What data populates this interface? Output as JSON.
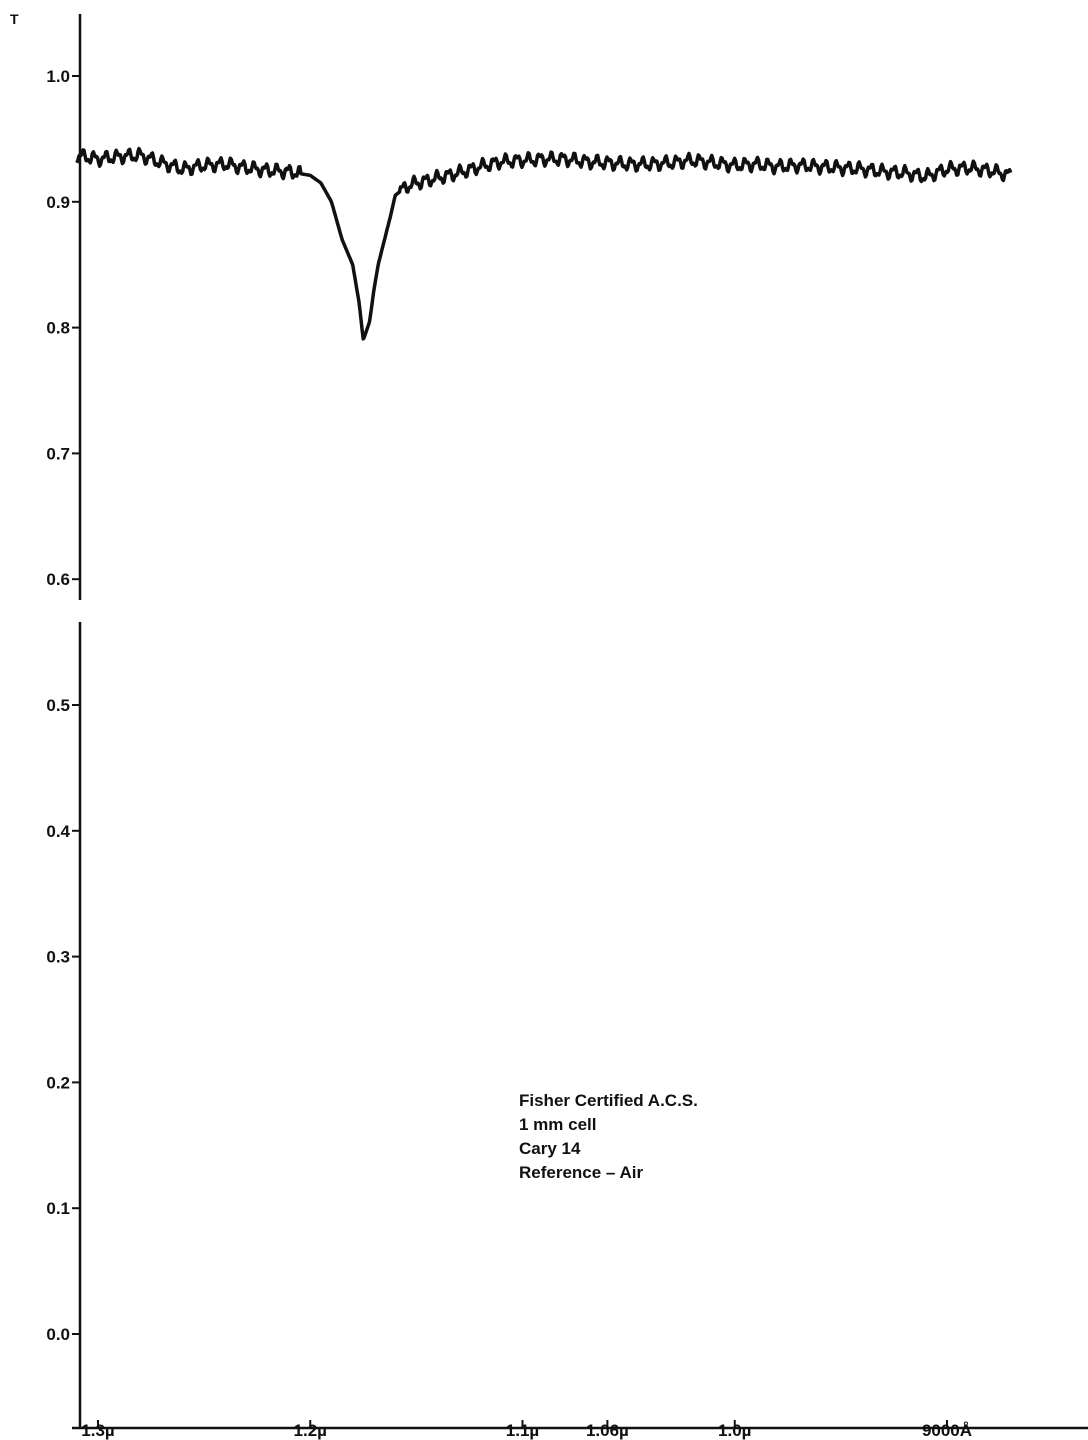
{
  "chart_data": {
    "type": "line",
    "ylabel": "T",
    "xlabel": "",
    "title": "",
    "ylim": [
      -0.05,
      1.05
    ],
    "y_ticks": [
      {
        "value": 1.0,
        "label": "1.0"
      },
      {
        "value": 0.9,
        "label": "0.9"
      },
      {
        "value": 0.8,
        "label": "0.8"
      },
      {
        "value": 0.7,
        "label": "0.7"
      },
      {
        "value": 0.6,
        "label": "0.6"
      },
      {
        "value": 0.5,
        "label": "0.5"
      },
      {
        "value": 0.4,
        "label": "0.4"
      },
      {
        "value": 0.3,
        "label": "0.3"
      },
      {
        "value": 0.2,
        "label": "0.2"
      },
      {
        "value": 0.1,
        "label": "0.1"
      },
      {
        "value": 0.0,
        "label": "0.0"
      }
    ],
    "x_unit": "µ",
    "x_direction": "decreasing wavelength, left to right",
    "xlim": [
      1.31,
      0.87
    ],
    "x_ticks": [
      {
        "value": 1.3,
        "label": "1.3µ"
      },
      {
        "value": 1.2,
        "label": "1.2µ"
      },
      {
        "value": 1.1,
        "label": "1.1µ"
      },
      {
        "value": 1.06,
        "label": "1.06µ"
      },
      {
        "value": 1.0,
        "label": "1.0µ"
      },
      {
        "value": 0.9,
        "label": "9000Å"
      }
    ],
    "grid": false,
    "annotations": [
      "Fisher Certified A.C.S.",
      "1 mm cell",
      "Cary 14",
      "Reference – Air"
    ],
    "series": [
      {
        "x": [
          1.31,
          1.3,
          1.29,
          1.28,
          1.27,
          1.26,
          1.25,
          1.24,
          1.23,
          1.22,
          1.21,
          1.2,
          1.195,
          1.19,
          1.185,
          1.18,
          1.177,
          1.175,
          1.172,
          1.17,
          1.168,
          1.165,
          1.162,
          1.16,
          1.155,
          1.15,
          1.14,
          1.13,
          1.12,
          1.11,
          1.1,
          1.09,
          1.08,
          1.07,
          1.06,
          1.05,
          1.04,
          1.03,
          1.02,
          1.01,
          1.0,
          0.99,
          0.98,
          0.97,
          0.96,
          0.95,
          0.94,
          0.93,
          0.92,
          0.91,
          0.9,
          0.89,
          0.88,
          0.87
        ],
        "y": [
          0.937,
          0.934,
          0.936,
          0.937,
          0.931,
          0.926,
          0.929,
          0.93,
          0.927,
          0.925,
          0.924,
          0.921,
          0.915,
          0.9,
          0.87,
          0.85,
          0.82,
          0.79,
          0.805,
          0.83,
          0.85,
          0.87,
          0.89,
          0.905,
          0.912,
          0.915,
          0.919,
          0.923,
          0.928,
          0.932,
          0.933,
          0.934,
          0.934,
          0.932,
          0.931,
          0.93,
          0.93,
          0.931,
          0.933,
          0.931,
          0.929,
          0.93,
          0.928,
          0.929,
          0.928,
          0.927,
          0.926,
          0.924,
          0.923,
          0.92,
          0.926,
          0.927,
          0.925,
          0.921
        ]
      }
    ]
  }
}
